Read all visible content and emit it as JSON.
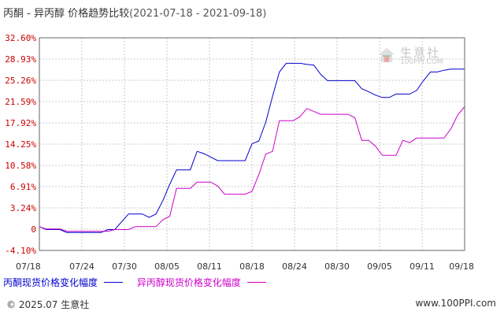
{
  "title": {
    "main": "丙酮 - 异丙醇 价格趋势比较",
    "range": "(2021-07-18 - 2021-09-18)"
  },
  "chart_data": {
    "type": "line",
    "title": "丙酮 - 异丙醇 价格趋势比较(2021-07-18 - 2021-09-18)",
    "x_start": "2021-07-18",
    "x_end": "2021-09-18",
    "x_ticks": [
      "07/18",
      "07/24",
      "07/30",
      "08/05",
      "08/11",
      "08/18",
      "08/24",
      "08/30",
      "09/05",
      "09/11",
      "09/18"
    ],
    "y_ticks": [
      "32.60%",
      "28.93%",
      "25.26%",
      "21.59%",
      "17.92%",
      "14.25%",
      "10.58%",
      "6.91%",
      "3.24%",
      "0",
      "-4.10%"
    ],
    "ylim": [
      -4.1,
      32.6
    ],
    "y_unit": "%",
    "grid": true,
    "legend_position": "bottom",
    "series": [
      {
        "name": "丙酮现货价格变化幅度",
        "color": "#0000cc",
        "points": [
          [
            "2021-07-18",
            0.0
          ],
          [
            "2021-07-19",
            -0.5
          ],
          [
            "2021-07-20",
            -0.5
          ],
          [
            "2021-07-21",
            -0.5
          ],
          [
            "2021-07-22",
            -1.0
          ],
          [
            "2021-07-23",
            -1.0
          ],
          [
            "2021-07-26",
            -1.0
          ],
          [
            "2021-07-27",
            -1.0
          ],
          [
            "2021-07-28",
            -0.5
          ],
          [
            "2021-07-29",
            -0.5
          ],
          [
            "2021-07-31",
            2.2
          ],
          [
            "2021-08-02",
            2.2
          ],
          [
            "2021-08-03",
            1.6
          ],
          [
            "2021-08-04",
            2.2
          ],
          [
            "2021-08-05",
            4.5
          ],
          [
            "2021-08-06",
            7.3
          ],
          [
            "2021-08-07",
            9.8
          ],
          [
            "2021-08-08",
            9.8
          ],
          [
            "2021-08-09",
            9.8
          ],
          [
            "2021-08-10",
            13.0
          ],
          [
            "2021-08-11",
            12.6
          ],
          [
            "2021-08-12",
            12.0
          ],
          [
            "2021-08-13",
            11.4
          ],
          [
            "2021-08-16",
            11.4
          ],
          [
            "2021-08-17",
            11.4
          ],
          [
            "2021-08-18",
            14.3
          ],
          [
            "2021-08-19",
            14.8
          ],
          [
            "2021-08-20",
            18.0
          ],
          [
            "2021-08-21",
            22.5
          ],
          [
            "2021-08-22",
            26.7
          ],
          [
            "2021-08-23",
            28.2
          ],
          [
            "2021-08-24",
            28.2
          ],
          [
            "2021-08-25",
            28.2
          ],
          [
            "2021-08-26",
            28.0
          ],
          [
            "2021-08-27",
            27.9
          ],
          [
            "2021-08-28",
            26.3
          ],
          [
            "2021-08-29",
            25.2
          ],
          [
            "2021-08-30",
            25.2
          ],
          [
            "2021-09-02",
            25.2
          ],
          [
            "2021-09-03",
            23.8
          ],
          [
            "2021-09-04",
            23.3
          ],
          [
            "2021-09-05",
            22.7
          ],
          [
            "2021-09-06",
            22.3
          ],
          [
            "2021-09-07",
            22.3
          ],
          [
            "2021-09-08",
            22.9
          ],
          [
            "2021-09-09",
            22.9
          ],
          [
            "2021-09-10",
            22.9
          ],
          [
            "2021-09-11",
            23.5
          ],
          [
            "2021-09-12",
            25.2
          ],
          [
            "2021-09-13",
            26.7
          ],
          [
            "2021-09-14",
            26.7
          ],
          [
            "2021-09-15",
            27.0
          ],
          [
            "2021-09-16",
            27.2
          ],
          [
            "2021-09-17",
            27.2
          ],
          [
            "2021-09-18",
            27.2
          ],
          [
            "2021-09-18",
            27.8
          ],
          [
            "2021-09-18",
            28.9
          ]
        ]
      },
      {
        "name": "异丙醇现货价格变化幅度",
        "color": "#cc00cc",
        "points": [
          [
            "2021-07-18",
            0.0
          ],
          [
            "2021-07-19",
            -0.4
          ],
          [
            "2021-07-21",
            -0.4
          ],
          [
            "2021-07-22",
            -0.8
          ],
          [
            "2021-07-28",
            -0.8
          ],
          [
            "2021-07-29",
            -0.5
          ],
          [
            "2021-07-31",
            -0.5
          ],
          [
            "2021-08-01",
            0.0
          ],
          [
            "2021-08-04",
            0.0
          ],
          [
            "2021-08-05",
            1.2
          ],
          [
            "2021-08-06",
            1.8
          ],
          [
            "2021-08-07",
            6.6
          ],
          [
            "2021-08-09",
            6.6
          ],
          [
            "2021-08-10",
            7.7
          ],
          [
            "2021-08-12",
            7.7
          ],
          [
            "2021-08-13",
            7.0
          ],
          [
            "2021-08-14",
            5.6
          ],
          [
            "2021-08-16",
            5.6
          ],
          [
            "2021-08-17",
            5.6
          ],
          [
            "2021-08-18",
            6.1
          ],
          [
            "2021-08-19",
            9.0
          ],
          [
            "2021-08-20",
            12.5
          ],
          [
            "2021-08-21",
            13.0
          ],
          [
            "2021-08-22",
            18.3
          ],
          [
            "2021-08-24",
            18.3
          ],
          [
            "2021-08-25",
            19.0
          ],
          [
            "2021-08-26",
            20.4
          ],
          [
            "2021-08-27",
            19.9
          ],
          [
            "2021-08-28",
            19.4
          ],
          [
            "2021-09-01",
            19.4
          ],
          [
            "2021-09-02",
            18.8
          ],
          [
            "2021-09-03",
            14.9
          ],
          [
            "2021-09-04",
            14.9
          ],
          [
            "2021-09-05",
            13.9
          ],
          [
            "2021-09-06",
            12.3
          ],
          [
            "2021-09-08",
            12.3
          ],
          [
            "2021-09-09",
            14.9
          ],
          [
            "2021-09-10",
            14.5
          ],
          [
            "2021-09-11",
            15.3
          ],
          [
            "2021-09-13",
            15.3
          ],
          [
            "2021-09-14",
            15.3
          ],
          [
            "2021-09-15",
            15.3
          ],
          [
            "2021-09-16",
            16.9
          ],
          [
            "2021-09-17",
            19.3
          ],
          [
            "2021-09-18",
            20.7
          ]
        ]
      }
    ]
  },
  "legend": {
    "item1": "丙酮现货价格变化幅度",
    "item2": "异丙醇现货价格变化幅度"
  },
  "footer": {
    "copyright": "© 2025.07 生意社",
    "url": "www.100PPI.com"
  },
  "watermark": {
    "text": "生意社",
    "url": "100PPI.COM"
  }
}
